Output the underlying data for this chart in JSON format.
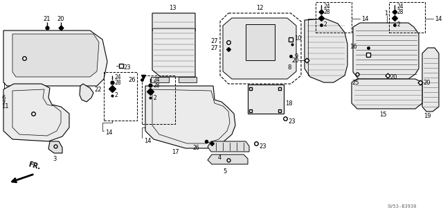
{
  "background_color": "#ffffff",
  "diagram_id": "SV53-B3930",
  "fig_width": 6.4,
  "fig_height": 3.19,
  "dpi": 100
}
